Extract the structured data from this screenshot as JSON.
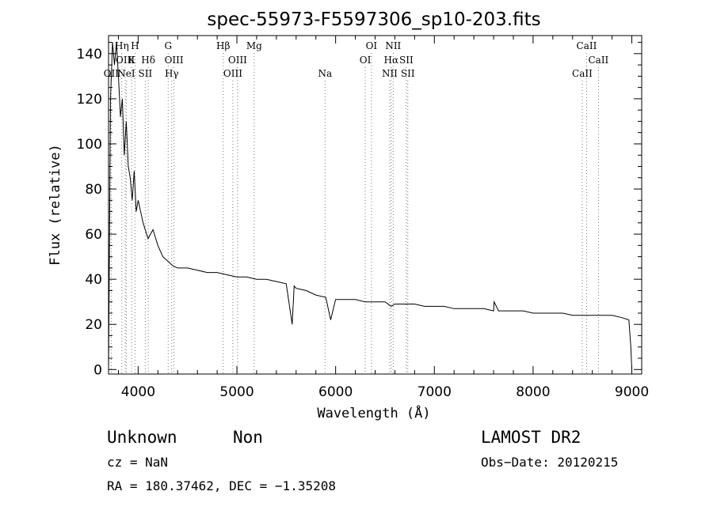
{
  "chart_data": {
    "type": "line",
    "title": "spec-55973-F5597306_sp10-203.fits",
    "xlabel": "Wavelength (Å)",
    "ylabel": "Flux (relative)",
    "xlim": [
      3700,
      9100
    ],
    "ylim": [
      -2,
      148
    ],
    "x_ticks": [
      4000,
      5000,
      6000,
      7000,
      8000,
      9000
    ],
    "y_ticks": [
      0,
      20,
      40,
      60,
      80,
      100,
      120,
      140
    ],
    "grid": false,
    "legend": "none",
    "series": [
      {
        "x": [
          3700,
          3720,
          3740,
          3760,
          3780,
          3800,
          3820,
          3840,
          3860,
          3880,
          3900,
          3920,
          3940,
          3960,
          3980,
          4000,
          4050,
          4100,
          4150,
          4200,
          4250,
          4300,
          4350,
          4400,
          4500,
          4600,
          4700,
          4800,
          4900,
          5000,
          5100,
          5200,
          5300,
          5400,
          5500,
          5560,
          5580,
          5600,
          5700,
          5800,
          5900,
          5950,
          6000,
          6100,
          6200,
          6300,
          6400,
          6500,
          6563,
          6600,
          6700,
          6800,
          6900,
          7000,
          7100,
          7200,
          7300,
          7400,
          7500,
          7600,
          7605,
          7650,
          7700,
          7800,
          7900,
          8000,
          8100,
          8200,
          8300,
          8400,
          8500,
          8600,
          8700,
          8800,
          8900,
          8970,
          8990,
          9000
        ],
        "y": [
          0,
          120,
          145,
          135,
          145,
          130,
          112,
          120,
          95,
          110,
          90,
          85,
          75,
          88,
          70,
          75,
          65,
          58,
          62,
          55,
          50,
          48,
          46,
          45,
          45,
          44,
          43,
          43,
          42,
          41,
          41,
          40,
          40,
          39,
          38,
          20,
          37,
          36,
          35,
          33,
          32,
          22,
          31,
          31,
          31,
          30,
          30,
          30,
          28,
          29,
          29,
          29,
          28,
          28,
          28,
          27,
          27,
          27,
          27,
          26,
          30,
          26,
          26,
          26,
          26,
          25,
          25,
          25,
          25,
          24,
          24,
          24,
          24,
          24,
          23,
          22,
          10,
          0
        ]
      }
    ],
    "spectral_lines": [
      {
        "label": "OII",
        "x": 3727,
        "row": 3
      },
      {
        "label": "Hη",
        "x": 3835,
        "row": 1
      },
      {
        "label": "OIII",
        "x": 3869,
        "row": 2
      },
      {
        "label": "NeI",
        "x": 3880,
        "row": 3
      },
      {
        "label": "K",
        "x": 3934,
        "row": 2
      },
      {
        "label": "H",
        "x": 3968,
        "row": 1
      },
      {
        "label": "SII",
        "x": 4072,
        "row": 3
      },
      {
        "label": "Hδ",
        "x": 4102,
        "row": 2
      },
      {
        "label": "G",
        "x": 4304,
        "row": 1
      },
      {
        "label": "Hγ",
        "x": 4340,
        "row": 3
      },
      {
        "label": "OIII",
        "x": 4363,
        "row": 2
      },
      {
        "label": "Hβ",
        "x": 4861,
        "row": 1
      },
      {
        "label": "OIII",
        "x": 4959,
        "row": 3
      },
      {
        "label": "OIII",
        "x": 5007,
        "row": 2
      },
      {
        "label": "Mg",
        "x": 5175,
        "row": 1
      },
      {
        "label": "Na",
        "x": 5893,
        "row": 3
      },
      {
        "label": "OI",
        "x": 6300,
        "row": 2
      },
      {
        "label": "OI",
        "x": 6363,
        "row": 1
      },
      {
        "label": "NII",
        "x": 6548,
        "row": 3
      },
      {
        "label": "Hα",
        "x": 6563,
        "row": 2
      },
      {
        "label": "NII",
        "x": 6583,
        "row": 1
      },
      {
        "label": "SII",
        "x": 6716,
        "row": 2
      },
      {
        "label": "SII",
        "x": 6731,
        "row": 3
      },
      {
        "label": "CaII",
        "x": 8498,
        "row": 3
      },
      {
        "label": "CaII",
        "x": 8542,
        "row": 1
      },
      {
        "label": "CaII",
        "x": 8662,
        "row": 2
      }
    ]
  },
  "info": {
    "class": "Unknown",
    "subclass": "Non",
    "cz": "cz = NaN",
    "radec": "RA = 180.37462, DEC =  −1.35208",
    "survey": "LAMOST DR2",
    "obs_date": "Obs−Date: 20120215"
  }
}
